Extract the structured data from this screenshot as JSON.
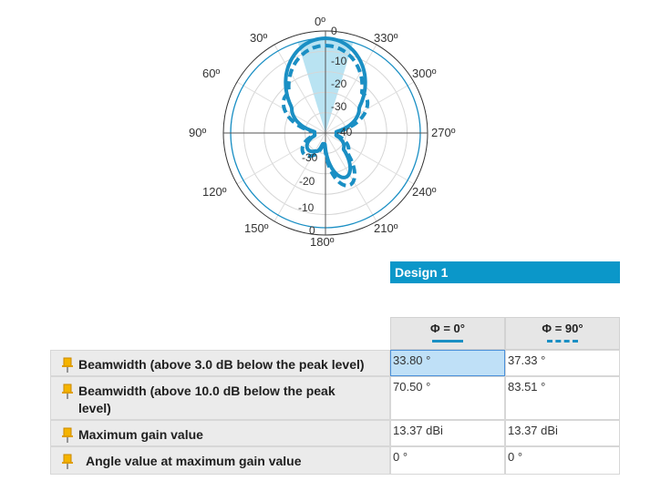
{
  "polar_plot": {
    "angle_labels": [
      "0º",
      "30º",
      "60º",
      "90º",
      "120º",
      "150º",
      "180º",
      "210º",
      "240º",
      "270º",
      "300º",
      "330º"
    ],
    "ring_labels_upper": [
      "-10",
      "-20",
      "-30",
      "-40"
    ],
    "ring_labels_lower": [
      "-30",
      "-20",
      "-10",
      "0"
    ],
    "zero_label": "0",
    "series_color": "#1a8fc4",
    "beam_fill_color": "#a8dcef"
  },
  "design_header": "Design 1",
  "table": {
    "columns": [
      {
        "label": "Φ = 0°",
        "style": "solid"
      },
      {
        "label": "Φ = 90°",
        "style": "dashed"
      }
    ],
    "rows": [
      {
        "name": "Beamwidth (above 3.0 dB below the peak level)",
        "v1": "33.80 °",
        "v2": "37.33 °"
      },
      {
        "name": "Beamwidth (above 10.0 dB below the peak level)",
        "v1": "70.50 °",
        "v2": "83.51 °"
      },
      {
        "name": "Maximum gain value",
        "v1": "13.37 dBi",
        "v2": "13.37 dBi"
      },
      {
        "name": "Angle value at maximum gain value",
        "v1": "0 °",
        "v2": "0 °"
      }
    ]
  }
}
